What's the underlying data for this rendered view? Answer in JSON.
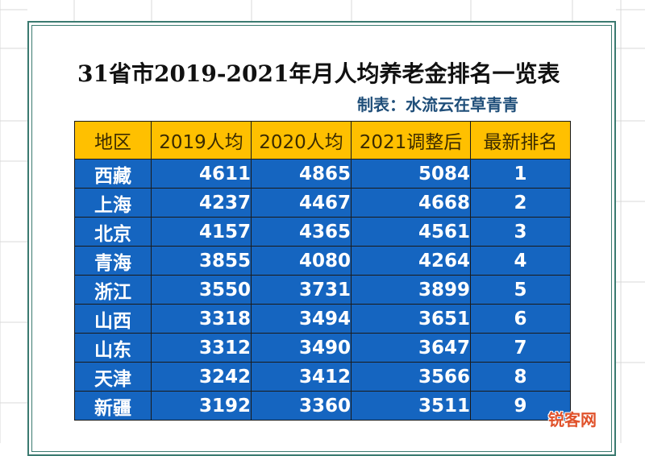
{
  "title": "31省市2019-2021年月人均养老金排名一览表",
  "subtitle": "制表：水流云在草青青",
  "table": {
    "headers": [
      "地区",
      "2019人均",
      "2020人均",
      "2021调整后",
      "最新排名"
    ],
    "rows": [
      {
        "region": "西藏",
        "y2019": "4611",
        "y2020": "4865",
        "y2021": "5084",
        "rank": "1"
      },
      {
        "region": "上海",
        "y2019": "4237",
        "y2020": "4467",
        "y2021": "4668",
        "rank": "2"
      },
      {
        "region": "北京",
        "y2019": "4157",
        "y2020": "4365",
        "y2021": "4561",
        "rank": "3"
      },
      {
        "region": "青海",
        "y2019": "3855",
        "y2020": "4080",
        "y2021": "4264",
        "rank": "4"
      },
      {
        "region": "浙江",
        "y2019": "3550",
        "y2020": "3731",
        "y2021": "3899",
        "rank": "5"
      },
      {
        "region": "山西",
        "y2019": "3318",
        "y2020": "3494",
        "y2021": "3651",
        "rank": "6"
      },
      {
        "region": "山东",
        "y2019": "3312",
        "y2020": "3490",
        "y2021": "3647",
        "rank": "7"
      },
      {
        "region": "天津",
        "y2019": "3242",
        "y2020": "3412",
        "y2021": "3566",
        "rank": "8"
      },
      {
        "region": "新疆",
        "y2019": "3192",
        "y2020": "3360",
        "y2021": "3511",
        "rank": "9"
      }
    ]
  },
  "watermark": "锐客网",
  "colors": {
    "header_bg": "#ffc000",
    "cell_bg": "#1565c0",
    "subtitle": "#1f4e79",
    "frame": "#3b7a70"
  }
}
